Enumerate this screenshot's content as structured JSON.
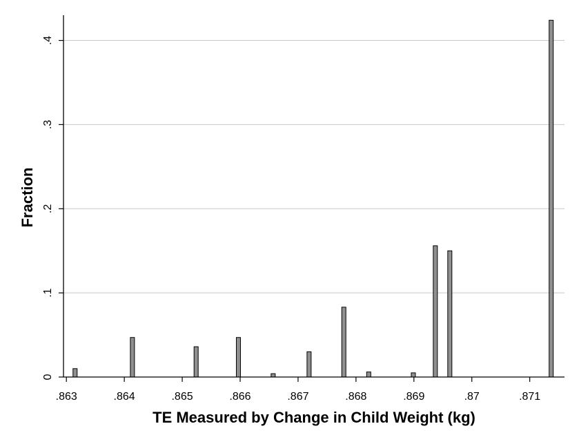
{
  "chart_data": {
    "type": "bar",
    "title": "",
    "xlabel": "TE Measured by Change in Child Weight (kg)",
    "ylabel": "Fraction",
    "xlim": [
      0.86295,
      0.8716
    ],
    "ylim": [
      0,
      0.43
    ],
    "x_ticks": [
      0.863,
      0.864,
      0.865,
      0.866,
      0.867,
      0.868,
      0.869,
      0.87,
      0.871
    ],
    "x_tick_labels": [
      ".863",
      ".864",
      ".865",
      ".866",
      ".867",
      ".868",
      ".869",
      ".87",
      ".871"
    ],
    "y_ticks": [
      0,
      0.1,
      0.2,
      0.3,
      0.4
    ],
    "y_tick_labels": [
      "0",
      ".1",
      ".2",
      ".3",
      ".4"
    ],
    "grid": true,
    "bar_color": "#909090",
    "bar_edge_color": "#000000",
    "grid_color": "#c8c8c8",
    "bars": [
      {
        "x": 0.86315,
        "value": 0.01
      },
      {
        "x": 0.86414,
        "value": 0.047
      },
      {
        "x": 0.86524,
        "value": 0.036
      },
      {
        "x": 0.86597,
        "value": 0.047
      },
      {
        "x": 0.86657,
        "value": 0.004
      },
      {
        "x": 0.86719,
        "value": 0.03
      },
      {
        "x": 0.86779,
        "value": 0.083
      },
      {
        "x": 0.86822,
        "value": 0.006
      },
      {
        "x": 0.86899,
        "value": 0.005
      },
      {
        "x": 0.86937,
        "value": 0.156
      },
      {
        "x": 0.86962,
        "value": 0.15
      },
      {
        "x": 0.87137,
        "value": 0.424
      }
    ]
  }
}
